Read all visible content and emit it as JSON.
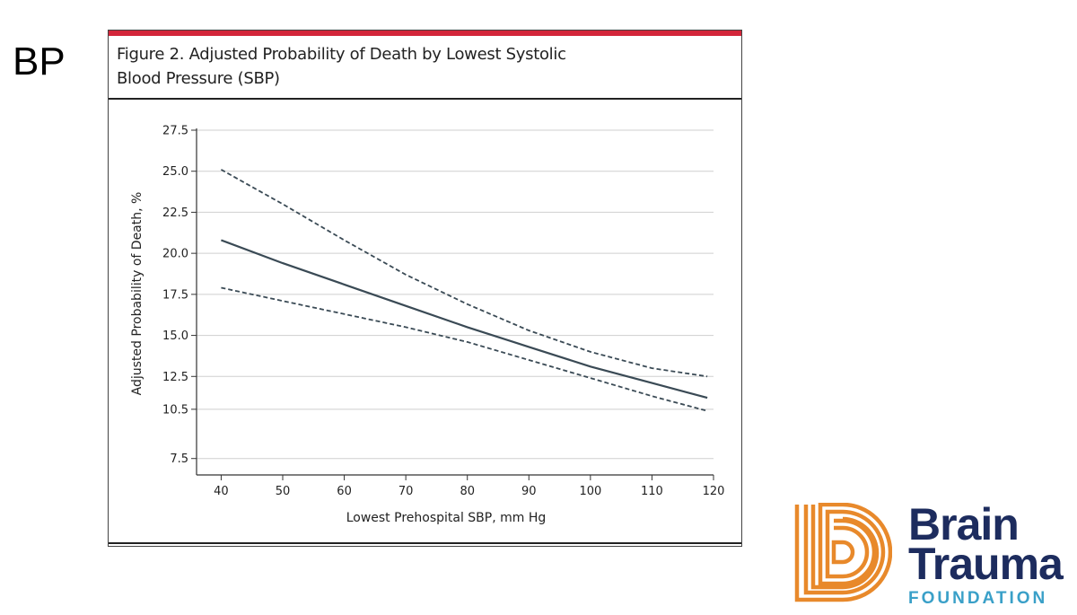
{
  "slide": {
    "label": "BP"
  },
  "figure": {
    "title_line1": "Figure 2. Adjusted Probability of Death by Lowest Systolic",
    "title_line2": "Blood Pressure (SBP)",
    "accent_color": "#d3263a"
  },
  "chart_data": {
    "type": "line",
    "title": "Figure 2. Adjusted Probability of Death by Lowest Systolic Blood Pressure (SBP)",
    "xlabel": "Lowest Prehospital SBP, mm Hg",
    "ylabel": "Adjusted Probability of Death, %",
    "xlim": [
      36,
      120
    ],
    "ylim": [
      6.5,
      27.5
    ],
    "xticks": [
      40,
      50,
      60,
      70,
      80,
      90,
      100,
      110,
      120
    ],
    "yticks": [
      7.5,
      10.5,
      12.5,
      15.0,
      17.5,
      20.0,
      22.5,
      25.0,
      27.5
    ],
    "ytick_labels": [
      "7.5",
      "10.5",
      "12.5",
      "15.0",
      "17.5",
      "20.0",
      "22.5",
      "25.0",
      "27.5"
    ],
    "grid": true,
    "line_color": "#3a4a55",
    "x": [
      40,
      50,
      60,
      70,
      80,
      90,
      100,
      110,
      119
    ],
    "series": [
      {
        "name": "Adjusted probability",
        "style": "solid",
        "values": [
          20.8,
          19.4,
          18.1,
          16.8,
          15.5,
          14.3,
          13.1,
          12.1,
          11.2
        ]
      },
      {
        "name": "Upper 95% CI",
        "style": "dashed",
        "values": [
          25.1,
          23.0,
          20.8,
          18.7,
          16.9,
          15.3,
          14.0,
          13.0,
          12.5
        ]
      },
      {
        "name": "Lower 95% CI",
        "style": "dashed",
        "values": [
          17.9,
          17.1,
          16.3,
          15.5,
          14.6,
          13.5,
          12.4,
          11.3,
          10.4
        ]
      }
    ]
  },
  "logo": {
    "line1": "Brain",
    "line2": "Trauma",
    "line3": "FOUNDATION",
    "orange": "#e8892b",
    "navy": "#1d2c5e",
    "teal": "#3aa0c8"
  }
}
